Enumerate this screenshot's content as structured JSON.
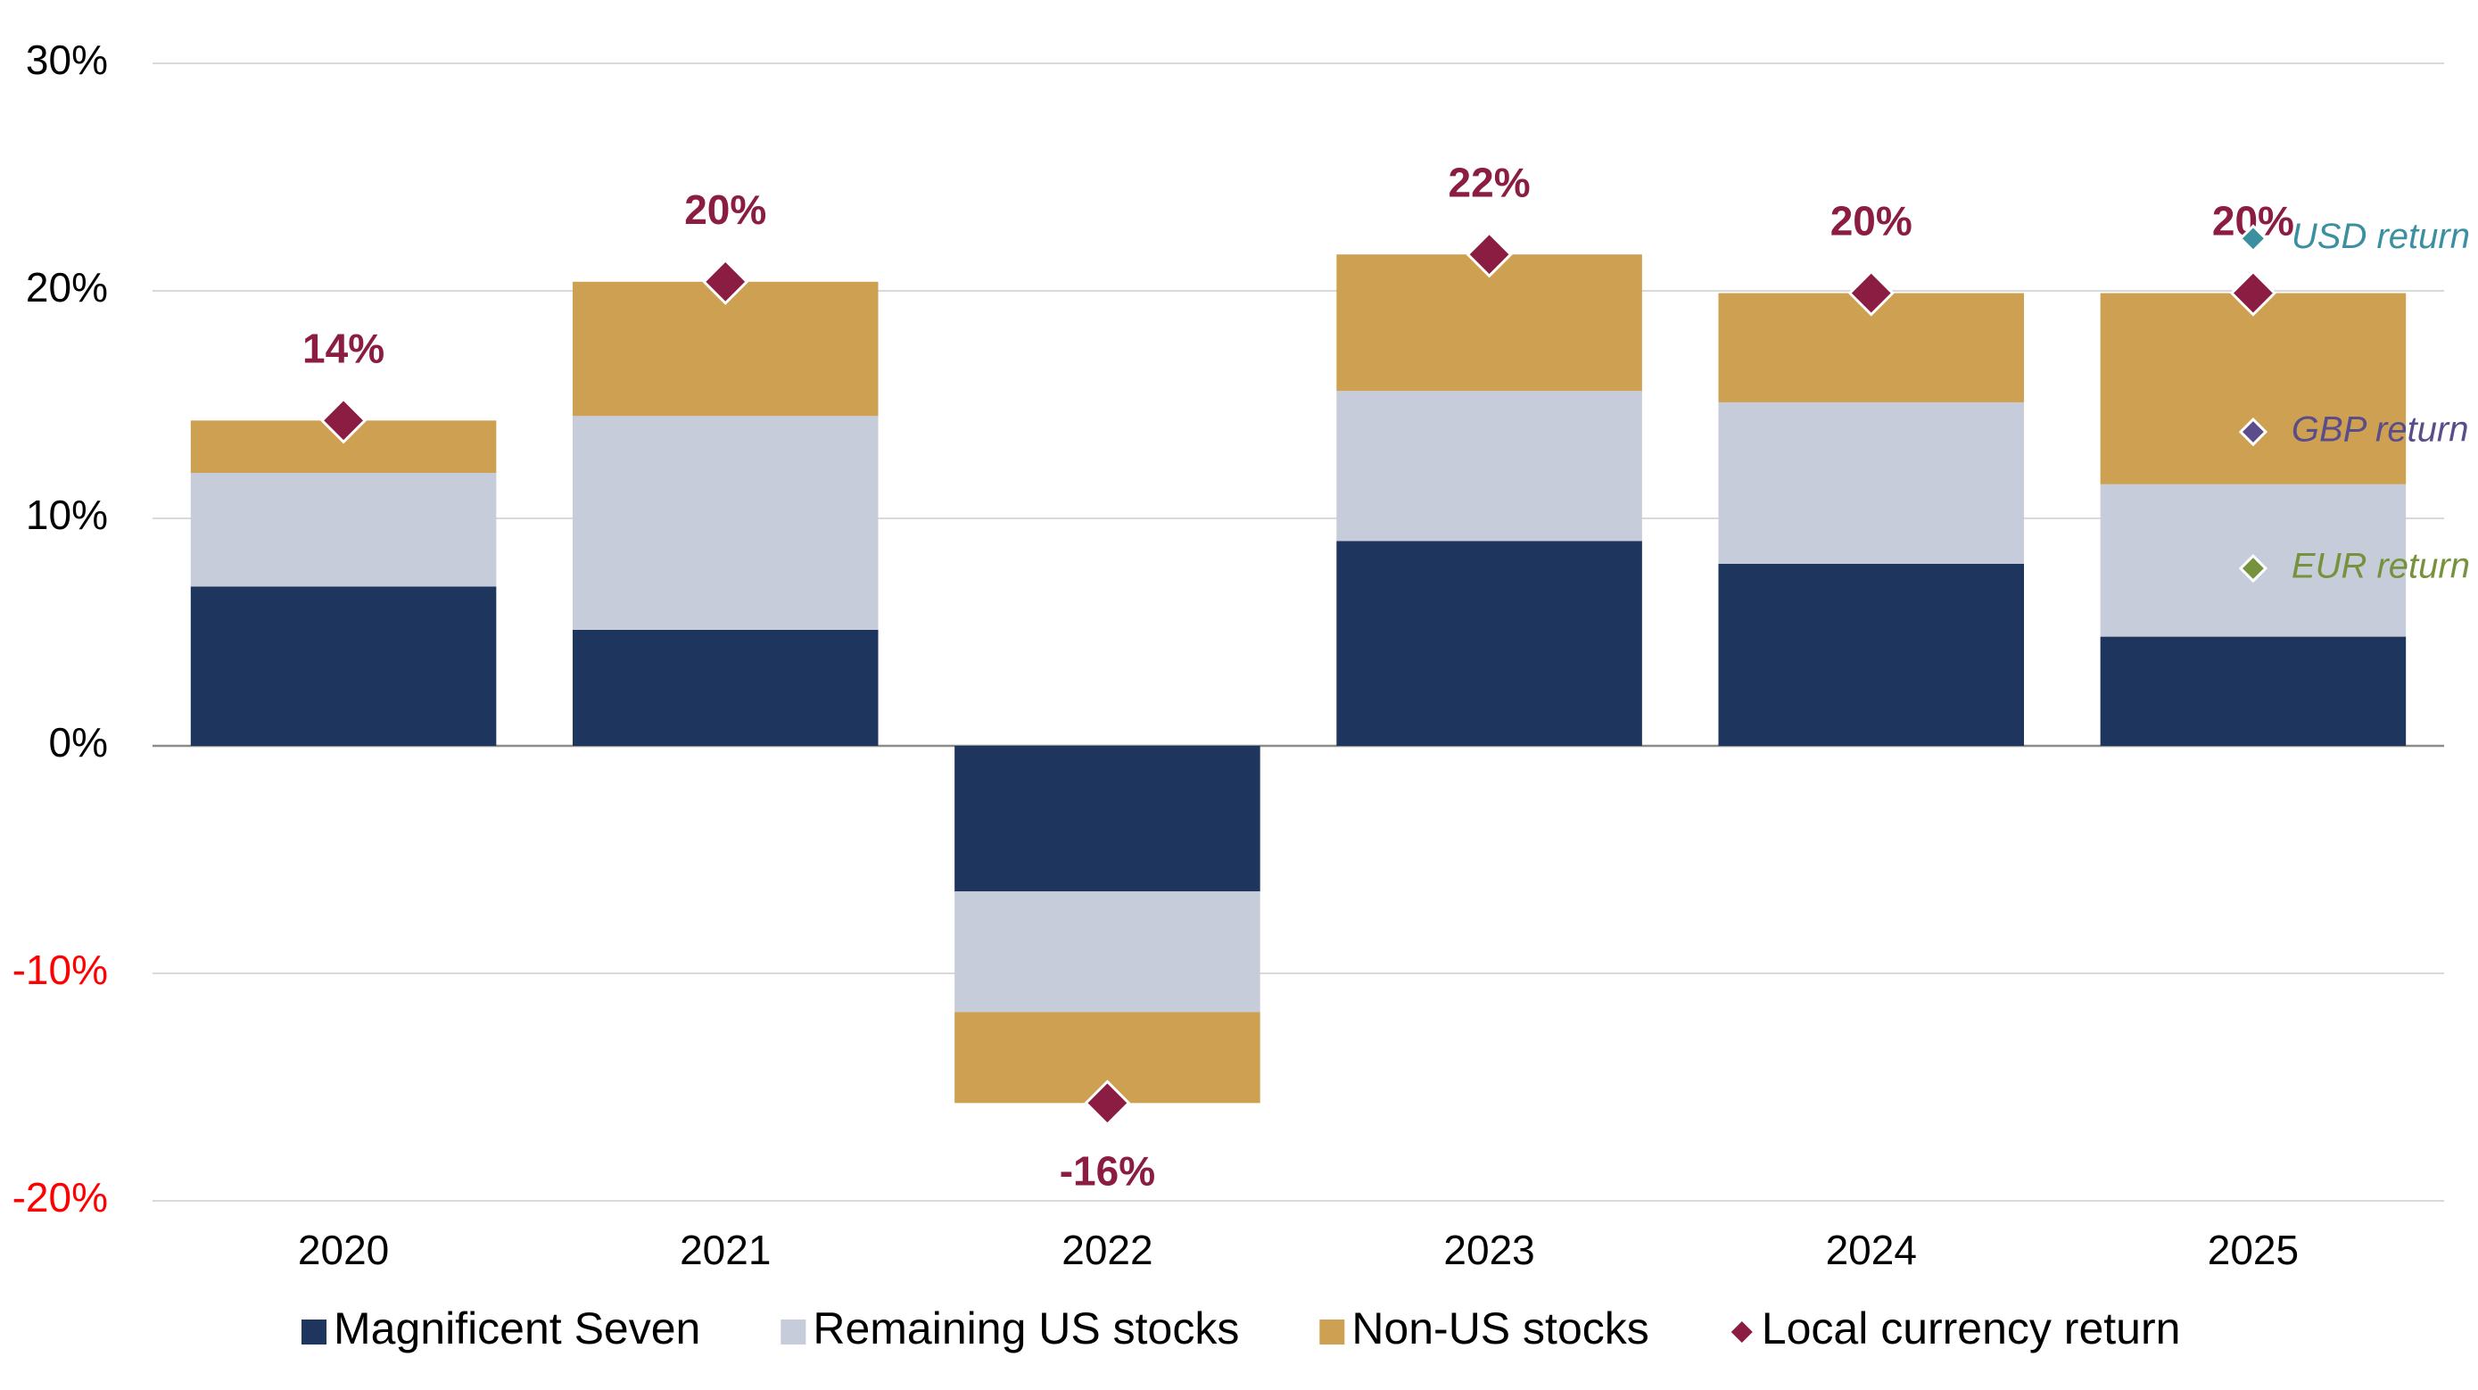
{
  "chart_data": {
    "type": "bar",
    "stacked": true,
    "categories": [
      "2020",
      "2021",
      "2022",
      "2023",
      "2024",
      "2025"
    ],
    "series": [
      {
        "name": "Magnificent Seven",
        "color": "#1e355e",
        "values": [
          7.0,
          5.1,
          -6.4,
          9.0,
          8.0,
          4.8
        ]
      },
      {
        "name": "Remaining US stocks",
        "color": "#c6ccd9",
        "values": [
          5.0,
          9.4,
          -5.3,
          6.6,
          7.1,
          6.7
        ]
      },
      {
        "name": "Non-US stocks",
        "color": "#cda052",
        "values": [
          2.3,
          5.9,
          -4.0,
          6.0,
          4.8,
          8.4
        ]
      }
    ],
    "markers": [
      {
        "name": "Local currency return",
        "color": "#8b1c42",
        "in_legend": true,
        "size": "large",
        "values": [
          14.3,
          20.4,
          -15.7,
          21.6,
          19.9,
          19.9
        ],
        "value_labels": [
          "14%",
          "20%",
          "-16%",
          "22%",
          "20%",
          "20%"
        ]
      },
      {
        "name": "USD return",
        "color": "#3a8fa0",
        "in_legend": false,
        "size": "small",
        "values": [
          null,
          null,
          null,
          null,
          null,
          22.3
        ]
      },
      {
        "name": "GBP return",
        "color": "#5b4d8a",
        "in_legend": false,
        "size": "small",
        "values": [
          null,
          null,
          null,
          null,
          null,
          13.8
        ]
      },
      {
        "name": "EUR return",
        "color": "#76923c",
        "in_legend": false,
        "size": "small",
        "values": [
          null,
          null,
          null,
          null,
          null,
          7.8
        ]
      }
    ],
    "ylim": [
      -20,
      30
    ],
    "yticks": [
      {
        "value": -20,
        "label": "-20%"
      },
      {
        "value": -10,
        "label": "-10%"
      },
      {
        "value": 0,
        "label": "0%"
      },
      {
        "value": 10,
        "label": "10%"
      },
      {
        "value": 20,
        "label": "20%"
      },
      {
        "value": 30,
        "label": "30%"
      }
    ],
    "negative_tick_color": "#ff0000",
    "grid": true,
    "legend": "bottom"
  }
}
